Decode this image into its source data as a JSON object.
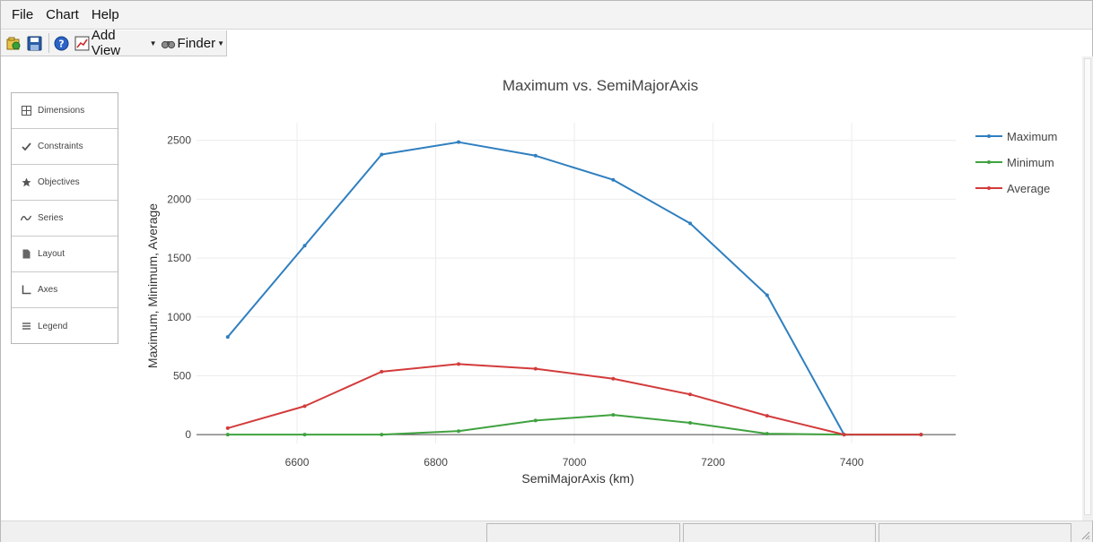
{
  "menubar": {
    "items": [
      {
        "label": "File"
      },
      {
        "label": "Chart"
      },
      {
        "label": "Help"
      }
    ]
  },
  "toolbar": {
    "add_view_label": "Add View",
    "finder_label": "Finder",
    "icons": [
      "open-icon",
      "save-icon",
      "help-icon",
      "chart-icon",
      "binoculars-icon"
    ]
  },
  "sidebar": {
    "items": [
      {
        "label": "Dimensions",
        "icon": "grid-icon"
      },
      {
        "label": "Constraints",
        "icon": "checkmark-icon"
      },
      {
        "label": "Objectives",
        "icon": "star-icon"
      },
      {
        "label": "Series",
        "icon": "wave-icon"
      },
      {
        "label": "Layout",
        "icon": "page-icon"
      },
      {
        "label": "Axes",
        "icon": "axes-icon"
      },
      {
        "label": "Legend",
        "icon": "list-icon"
      }
    ]
  },
  "chart_data": {
    "type": "line",
    "title": "Maximum vs. SemiMajorAxis",
    "xlabel": "SemiMajorAxis (km)",
    "ylabel": "Maximum, Minimum, Average",
    "xlim": [
      6455,
      7550
    ],
    "ylim": [
      -75,
      2650
    ],
    "xticks": [
      6600,
      6800,
      7000,
      7200,
      7400
    ],
    "yticks": [
      0,
      500,
      1000,
      1500,
      2000,
      2500
    ],
    "grid": true,
    "legend_position": "top-right",
    "x": [
      6500,
      6611,
      6722,
      6833,
      6944,
      7056,
      7167,
      7278,
      7389,
      7500
    ],
    "series": [
      {
        "name": "Maximum",
        "color": "#2f7fbf",
        "values": [
          830,
          1605,
          2380,
          2485,
          2370,
          2165,
          1795,
          1185,
          0,
          0
        ]
      },
      {
        "name": "Minimum",
        "color": "#3fa23f",
        "values": [
          0,
          0,
          0,
          30,
          120,
          168,
          100,
          8,
          0,
          0
        ]
      },
      {
        "name": "Average",
        "color": "#d33b3b",
        "values": [
          55,
          242,
          535,
          600,
          560,
          475,
          342,
          160,
          0,
          0
        ]
      }
    ]
  }
}
